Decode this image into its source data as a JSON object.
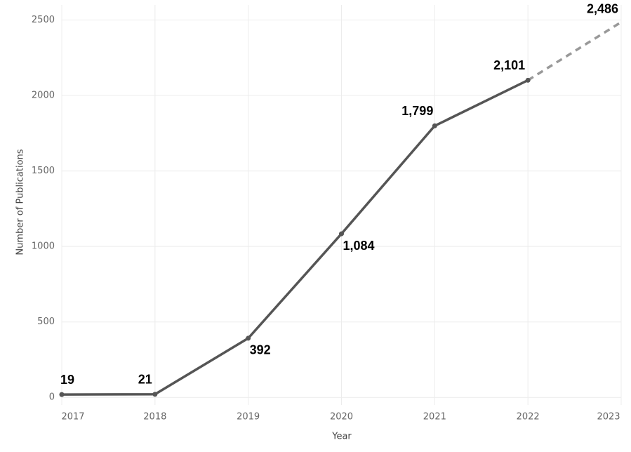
{
  "chart_data": {
    "type": "line",
    "x_label": "Year",
    "y_label": "Number of Publications",
    "x": [
      2017,
      2018,
      2019,
      2020,
      2021,
      2022,
      2023
    ],
    "series": [
      {
        "color": "#555555",
        "values": [
          19,
          21,
          392,
          1084,
          1799,
          2101,
          2486
        ],
        "value_labels": [
          "19",
          "21",
          "392",
          "1,084",
          "1,799",
          "2,101",
          "2,486"
        ]
      }
    ],
    "dashed_from": 2022,
    "dashed_color": "#999999",
    "xlim": [
      2017,
      2023
    ],
    "xticks": [
      2017,
      2018,
      2019,
      2020,
      2021,
      2022,
      2023
    ],
    "ylim": [
      -50,
      2600
    ],
    "yticks": [
      0,
      500,
      1000,
      1500,
      2000,
      2500
    ],
    "grid": true
  }
}
